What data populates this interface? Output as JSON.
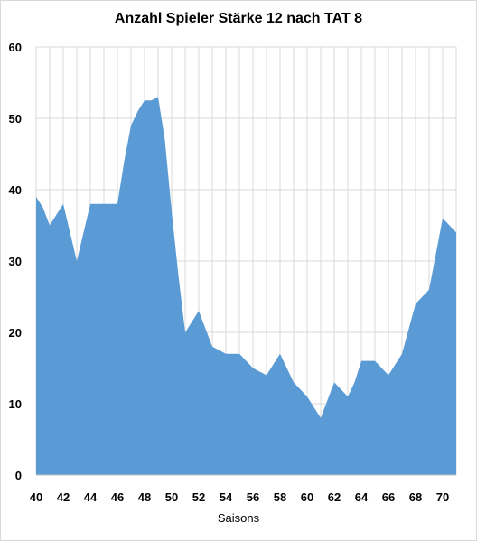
{
  "chart_data": {
    "type": "area",
    "title": "Anzahl Spieler Stärke 12 nach TAT 8",
    "xlabel": "Saisons",
    "ylabel": "",
    "xlim": [
      40,
      71
    ],
    "ylim": [
      0,
      60
    ],
    "yticks": [
      0,
      10,
      20,
      30,
      40,
      50,
      60
    ],
    "xticks": [
      40,
      42,
      44,
      46,
      48,
      50,
      52,
      54,
      56,
      58,
      60,
      62,
      64,
      66,
      68,
      70
    ],
    "grid": "vertical and horizontal",
    "legend": "none",
    "color": "#5b9bd5",
    "x": [
      40,
      40.5,
      41,
      41.5,
      42,
      42.5,
      43,
      43.5,
      44,
      44.5,
      45,
      45.5,
      46,
      46.5,
      47,
      47.5,
      48,
      48.5,
      49,
      49.5,
      50,
      50.5,
      51,
      51.5,
      52,
      52.5,
      53,
      53.5,
      54,
      54.5,
      55,
      55.5,
      56,
      56.5,
      57,
      57.5,
      58,
      58.5,
      59,
      59.5,
      60,
      60.5,
      61,
      61.5,
      62,
      62.5,
      63,
      63.5,
      64,
      64.5,
      65,
      65.5,
      66,
      66.5,
      67,
      67.5,
      68,
      68.5,
      69,
      69.5,
      70,
      70.5,
      71
    ],
    "values": [
      39,
      37.5,
      35,
      36.5,
      38,
      34,
      30,
      34,
      38,
      38,
      38,
      38,
      38,
      44,
      49,
      51,
      52.5,
      52.5,
      53,
      47,
      37,
      28,
      20,
      21.5,
      23,
      20.5,
      18,
      17.5,
      17,
      17,
      17,
      16,
      15,
      14.5,
      14,
      15.5,
      17,
      15,
      13,
      12,
      11,
      9.5,
      8,
      10.5,
      13,
      12,
      11,
      13,
      16,
      16,
      16,
      15,
      14,
      15.5,
      17,
      20.5,
      24,
      25,
      26,
      31,
      36,
      35,
      34
    ]
  }
}
